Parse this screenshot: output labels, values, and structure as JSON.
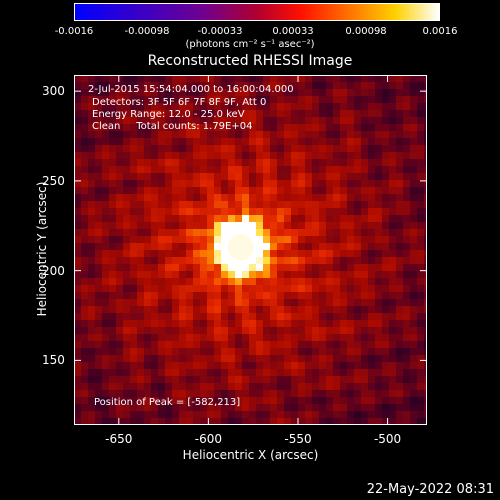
{
  "colorbar": {
    "ticks": [
      "-0.0016",
      "-0.00098",
      "-0.00033",
      "0.00033",
      "0.00098",
      "0.0016"
    ],
    "unit_label": "(photons cm⁻² s⁻¹ asec⁻²)",
    "range": [
      -0.0016,
      0.0016
    ],
    "colormap": "rainbow/hot"
  },
  "title": "Reconstructed RHESSI Image",
  "annotations": {
    "time": "2-Jul-2015 15:54:04.000 to 16:00:04.000",
    "detectors": "Detectors: 3F 5F 6F 7F 8F 9F, Att 0",
    "energy": "Energy Range: 12.0 - 25.0 keV",
    "method": "Clean     Total counts: 1.79E+04",
    "peak": "Position of Peak = [-582,213]"
  },
  "timestamp": "22-May-2022 08:31",
  "chart_data": {
    "type": "heatmap",
    "title": "Reconstructed RHESSI Image",
    "xlabel": "Heliocentric X (arcsec)",
    "ylabel": "Heliocentric Y (arcsec)",
    "xlim": [
      -675,
      -478
    ],
    "ylim": [
      114,
      309
    ],
    "x_ticks": [
      -650,
      -600,
      -550,
      -500
    ],
    "y_ticks": [
      150,
      200,
      250,
      300
    ],
    "x_tick_labels": [
      "-650",
      "-600",
      "-550",
      "-500"
    ],
    "y_tick_labels": [
      "150",
      "200",
      "250",
      "300"
    ],
    "peak_position": [
      -582,
      213
    ],
    "peak_label": "Position of Peak = [-582,213]",
    "color_range": [
      -0.0016,
      0.0016
    ]
  }
}
